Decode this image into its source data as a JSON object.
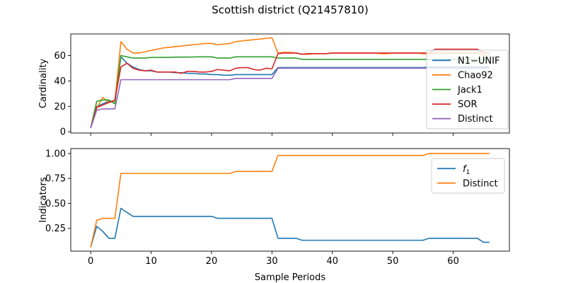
{
  "figure": {
    "title": "Scottish district (Q21457810)",
    "xlabel": "Sample Periods"
  },
  "chart_data": [
    {
      "type": "line",
      "title": "",
      "xlabel": "",
      "ylabel": "Cardinality",
      "xlim": [
        -3.3,
        69.3
      ],
      "ylim": [
        -1,
        77
      ],
      "xticks": [
        0,
        10,
        20,
        30,
        40,
        50,
        60
      ],
      "yticks": [
        0,
        20,
        40,
        60
      ],
      "ytick_labels": [
        "0",
        "20",
        "40",
        "60"
      ],
      "show_xtick_labels": false,
      "grid": false,
      "legend_position": "right",
      "series": [
        {
          "name": "N1−UNIF",
          "color": "#1f77b4",
          "x": [
            0,
            1,
            2,
            3,
            4,
            5,
            6,
            7,
            8,
            9,
            10,
            11,
            12,
            13,
            14,
            15,
            16,
            17,
            18,
            19,
            20,
            21,
            22,
            23,
            24,
            25,
            26,
            27,
            28,
            29,
            30,
            31,
            32,
            33,
            34,
            35,
            36,
            37,
            38,
            39,
            40,
            41,
            42,
            43,
            44,
            45,
            46,
            47,
            48,
            49,
            50,
            51,
            52,
            53,
            54,
            55,
            56,
            57,
            58,
            59,
            60,
            61,
            62,
            63,
            64,
            65,
            66
          ],
          "y": [
            3,
            20,
            22,
            24,
            24,
            59,
            54,
            51,
            49,
            48,
            48,
            47,
            47,
            47,
            46.5,
            46.5,
            46,
            46,
            45.5,
            45.5,
            45,
            45,
            44.5,
            44.5,
            45,
            45,
            45,
            45,
            45,
            45,
            45,
            50.5,
            50.5,
            50.5,
            50.5,
            50.5,
            50.5,
            50.5,
            50.5,
            50.5,
            50.5,
            50.5,
            50.5,
            50.5,
            50.5,
            50.5,
            50.5,
            50.5,
            50.5,
            50.5,
            50.5,
            50.5,
            50.5,
            50.5,
            50.5,
            50.5,
            51,
            51,
            51,
            51,
            51,
            51,
            51,
            51,
            51,
            51,
            51
          ]
        },
        {
          "name": "Chao92",
          "color": "#ff7f0e",
          "x": [
            0,
            1,
            2,
            3,
            4,
            5,
            6,
            7,
            8,
            9,
            10,
            11,
            12,
            13,
            14,
            15,
            16,
            17,
            18,
            19,
            20,
            21,
            22,
            23,
            24,
            25,
            26,
            27,
            28,
            29,
            30,
            31,
            32,
            33,
            34,
            35,
            36,
            37,
            38,
            39,
            40,
            41,
            42,
            43,
            44,
            45,
            46,
            47,
            48,
            49,
            50,
            51,
            52,
            53,
            54,
            55,
            56,
            57,
            58,
            59,
            60,
            61,
            62,
            63,
            64,
            65,
            66
          ],
          "y": [
            3,
            19,
            27,
            23,
            24,
            71,
            65,
            62,
            62,
            63,
            64,
            65,
            66,
            66.5,
            67,
            67.5,
            68,
            68.5,
            69,
            69.5,
            69.5,
            68.5,
            69,
            69.5,
            71,
            71.5,
            72,
            72.5,
            73,
            73.5,
            74,
            62,
            62.5,
            62.5,
            62,
            61,
            61,
            61.5,
            61.5,
            61.5,
            62,
            62,
            62,
            62,
            62,
            62,
            62,
            62,
            61.5,
            61.5,
            62,
            62,
            62,
            62,
            62,
            61.5,
            61.5,
            62,
            62,
            62,
            62,
            62,
            62,
            62,
            62,
            60,
            60
          ]
        },
        {
          "name": "Jack1",
          "color": "#2ca02c",
          "x": [
            0,
            1,
            2,
            3,
            4,
            5,
            6,
            7,
            8,
            9,
            10,
            11,
            12,
            13,
            14,
            15,
            16,
            17,
            18,
            19,
            20,
            21,
            22,
            23,
            24,
            25,
            26,
            27,
            28,
            29,
            30,
            31,
            32,
            33,
            34,
            35,
            36,
            37,
            38,
            39,
            40,
            41,
            42,
            43,
            44,
            45,
            46,
            47,
            48,
            49,
            50,
            51,
            52,
            53,
            54,
            55,
            56,
            57,
            58,
            59,
            60,
            61,
            62,
            63,
            64,
            65,
            66
          ],
          "y": [
            3,
            24,
            25,
            25,
            22,
            60,
            59,
            58,
            58,
            58,
            58.5,
            58.5,
            58.5,
            58.6,
            58.7,
            58.8,
            58.8,
            58.9,
            59,
            59,
            59,
            58,
            58,
            58,
            59,
            59,
            59,
            59,
            59,
            59,
            59,
            58,
            58,
            58,
            58,
            57,
            57,
            57,
            57,
            57,
            57,
            57,
            57,
            57,
            57,
            57,
            57,
            57,
            57,
            57,
            57,
            57,
            57,
            57,
            57,
            57,
            57,
            57,
            57,
            57,
            57,
            57,
            57,
            57,
            57,
            57,
            57
          ]
        },
        {
          "name": "SOR",
          "color": "#d62728",
          "x": [
            0,
            1,
            2,
            3,
            4,
            5,
            6,
            7,
            8,
            9,
            10,
            11,
            12,
            13,
            14,
            15,
            16,
            17,
            18,
            19,
            20,
            21,
            22,
            23,
            24,
            25,
            26,
            27,
            28,
            29,
            30,
            31,
            32,
            33,
            34,
            35,
            36,
            37,
            38,
            39,
            40,
            41,
            42,
            43,
            44,
            45,
            46,
            47,
            48,
            49,
            50,
            51,
            52,
            53,
            54,
            55,
            56,
            57,
            58,
            59,
            60,
            61,
            62,
            63,
            64,
            65,
            66
          ],
          "y": [
            3,
            19,
            21,
            23,
            25,
            51,
            54,
            50,
            48.5,
            48,
            48.5,
            47,
            47,
            47,
            47,
            46,
            47.5,
            47.5,
            47,
            47,
            47.5,
            49,
            48.5,
            48,
            50,
            50.5,
            50.5,
            49,
            48.5,
            50,
            49.5,
            61.5,
            62,
            62,
            62,
            61,
            61.5,
            61.5,
            61.5,
            61.5,
            62,
            62,
            62,
            62,
            62,
            62,
            62,
            62,
            62,
            62,
            62,
            62,
            62,
            62,
            62,
            62,
            62,
            65,
            65,
            65,
            65,
            65,
            65,
            65,
            65,
            62,
            62
          ]
        },
        {
          "name": "Distinct",
          "color": "#9467bd",
          "x": [
            0,
            1,
            2,
            3,
            4,
            5,
            6,
            7,
            8,
            9,
            10,
            11,
            12,
            13,
            14,
            15,
            16,
            17,
            18,
            19,
            20,
            21,
            22,
            23,
            24,
            25,
            26,
            27,
            28,
            29,
            30,
            31,
            32,
            33,
            34,
            35,
            36,
            37,
            38,
            39,
            40,
            41,
            42,
            43,
            44,
            45,
            46,
            47,
            48,
            49,
            50,
            51,
            52,
            53,
            54,
            55,
            56,
            57,
            58,
            59,
            60,
            61,
            62,
            63,
            64,
            65,
            66
          ],
          "y": [
            3,
            17,
            18,
            18,
            18,
            41,
            41,
            41,
            41,
            41,
            41,
            41,
            41,
            41,
            41,
            41,
            41,
            41,
            41,
            41,
            41,
            41,
            41,
            41,
            42,
            42,
            42,
            42,
            42,
            42,
            42,
            50,
            50,
            50,
            50,
            50,
            50,
            50,
            50,
            50,
            50,
            50,
            50,
            50,
            50,
            50,
            50,
            50,
            50,
            50,
            50,
            50,
            50,
            50,
            50,
            50,
            50,
            50,
            50,
            50,
            50,
            50,
            50,
            50,
            50,
            50,
            50
          ]
        }
      ]
    },
    {
      "type": "line",
      "title": "",
      "xlabel": "Sample Periods",
      "ylabel": "Indicators",
      "xlim": [
        -3.3,
        69.3
      ],
      "ylim": [
        0.021,
        1.049
      ],
      "xticks": [
        0,
        10,
        20,
        30,
        40,
        50,
        60
      ],
      "xtick_labels": [
        "0",
        "10",
        "20",
        "30",
        "40",
        "50",
        "60"
      ],
      "yticks": [
        0.25,
        0.5,
        0.75,
        1.0
      ],
      "ytick_labels": [
        "0.25",
        "0.50",
        "0.75",
        "1.00"
      ],
      "show_xtick_labels": true,
      "grid": false,
      "legend_position": "top-right",
      "series": [
        {
          "name": "f",
          "name_sub": "1",
          "color": "#1f77b4",
          "x": [
            0,
            1,
            2,
            3,
            4,
            5,
            6,
            7,
            8,
            9,
            10,
            11,
            12,
            13,
            14,
            15,
            16,
            17,
            18,
            19,
            20,
            21,
            22,
            23,
            24,
            25,
            26,
            27,
            28,
            29,
            30,
            31,
            32,
            33,
            34,
            35,
            36,
            37,
            38,
            39,
            40,
            41,
            42,
            43,
            44,
            45,
            46,
            47,
            48,
            49,
            50,
            51,
            52,
            53,
            54,
            55,
            56,
            57,
            58,
            59,
            60,
            61,
            62,
            63,
            64,
            65,
            66
          ],
          "y": [
            0.06,
            0.27,
            0.22,
            0.15,
            0.15,
            0.45,
            0.41,
            0.37,
            0.37,
            0.37,
            0.37,
            0.37,
            0.37,
            0.37,
            0.37,
            0.37,
            0.37,
            0.37,
            0.37,
            0.37,
            0.37,
            0.35,
            0.35,
            0.35,
            0.35,
            0.35,
            0.35,
            0.35,
            0.35,
            0.35,
            0.35,
            0.15,
            0.15,
            0.15,
            0.15,
            0.13,
            0.13,
            0.13,
            0.13,
            0.13,
            0.13,
            0.13,
            0.13,
            0.13,
            0.13,
            0.13,
            0.13,
            0.13,
            0.13,
            0.13,
            0.13,
            0.13,
            0.13,
            0.13,
            0.13,
            0.13,
            0.15,
            0.15,
            0.15,
            0.15,
            0.15,
            0.15,
            0.15,
            0.15,
            0.15,
            0.11,
            0.11
          ]
        },
        {
          "name": "Distinct",
          "color": "#ff7f0e",
          "x": [
            0,
            1,
            2,
            3,
            4,
            5,
            6,
            7,
            8,
            9,
            10,
            11,
            12,
            13,
            14,
            15,
            16,
            17,
            18,
            19,
            20,
            21,
            22,
            23,
            24,
            25,
            26,
            27,
            28,
            29,
            30,
            31,
            32,
            33,
            34,
            35,
            36,
            37,
            38,
            39,
            40,
            41,
            42,
            43,
            44,
            45,
            46,
            47,
            48,
            49,
            50,
            51,
            52,
            53,
            54,
            55,
            56,
            57,
            58,
            59,
            60,
            61,
            62,
            63,
            64,
            65,
            66
          ],
          "y": [
            0.06,
            0.33,
            0.35,
            0.35,
            0.35,
            0.8,
            0.8,
            0.8,
            0.8,
            0.8,
            0.8,
            0.8,
            0.8,
            0.8,
            0.8,
            0.8,
            0.8,
            0.8,
            0.8,
            0.8,
            0.8,
            0.8,
            0.8,
            0.8,
            0.82,
            0.82,
            0.82,
            0.82,
            0.82,
            0.82,
            0.82,
            0.98,
            0.98,
            0.98,
            0.98,
            0.98,
            0.98,
            0.98,
            0.98,
            0.98,
            0.98,
            0.98,
            0.98,
            0.98,
            0.98,
            0.98,
            0.98,
            0.98,
            0.98,
            0.98,
            0.98,
            0.98,
            0.98,
            0.98,
            0.98,
            0.98,
            1.0,
            1.0,
            1.0,
            1.0,
            1.0,
            1.0,
            1.0,
            1.0,
            1.0,
            1.0,
            1.0
          ]
        }
      ]
    }
  ]
}
